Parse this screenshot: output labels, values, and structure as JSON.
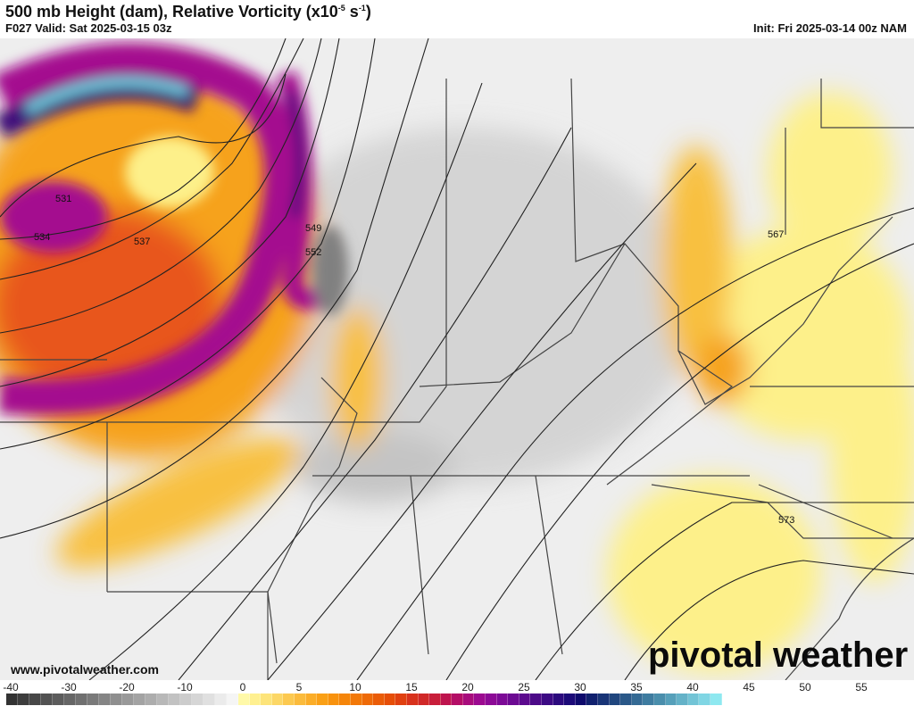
{
  "header": {
    "title_main": "500 mb Height (dam), Relative Vorticity (x10",
    "title_exp1": "-5",
    "title_mid": " s",
    "title_exp2": "-1",
    "title_end": ")",
    "valid": "F027 Valid: Sat 2025-03-15 03z",
    "init": "Init: Fri 2025-03-14 00z NAM"
  },
  "map": {
    "contour_labels": [
      "531",
      "534",
      "537",
      "549",
      "552",
      "567",
      "573"
    ],
    "fill_colors": {
      "gray": "#b9b9b9",
      "yellow": "#fdf08a",
      "orange": "#f6a21a",
      "red": "#e8561a",
      "magenta": "#a4108f",
      "purple": "#3d0a7a",
      "cyan": "#73dbe8"
    }
  },
  "footer": {
    "url": "www.pivotalweather.com",
    "logo": "pivotal weather"
  },
  "colorbar": {
    "ticks": [
      "-40",
      "-30",
      "-20",
      "-10",
      "0",
      "5",
      "10",
      "15",
      "20",
      "25",
      "30",
      "35",
      "40",
      "45",
      "50",
      "55"
    ],
    "colors": [
      "#333333",
      "#3d3d3d",
      "#474747",
      "#525252",
      "#5c5c5c",
      "#666666",
      "#707070",
      "#7a7a7a",
      "#858585",
      "#8f8f8f",
      "#999999",
      "#a3a3a3",
      "#adadad",
      "#b8b8b8",
      "#c2c2c2",
      "#cccccc",
      "#d6d6d6",
      "#e0e0e0",
      "#ebebeb",
      "#f5f5f5",
      "#fff9a8",
      "#fff090",
      "#fde47a",
      "#fcd766",
      "#fcc950",
      "#fbbb3c",
      "#fbad28",
      "#faa016",
      "#f8920e",
      "#f5850a",
      "#f27808",
      "#ee6a08",
      "#ea5c08",
      "#e64e08",
      "#e04010",
      "#d8321c",
      "#d02828",
      "#c81e3a",
      "#be144e",
      "#b40e66",
      "#a80c7c",
      "#9c0a90",
      "#8c0a96",
      "#7c0a96",
      "#6c0a92",
      "#5c0a8e",
      "#4c0a88",
      "#3c0a84",
      "#2c0a7e",
      "#1c0a78",
      "#0e0a6c",
      "#10206e",
      "#183476",
      "#20467e",
      "#2a5888",
      "#346a94",
      "#3e7ca0",
      "#4a8eac",
      "#56a0ba",
      "#64b2c8",
      "#72c4d6",
      "#80d6e4",
      "#8ee8f0"
    ]
  }
}
